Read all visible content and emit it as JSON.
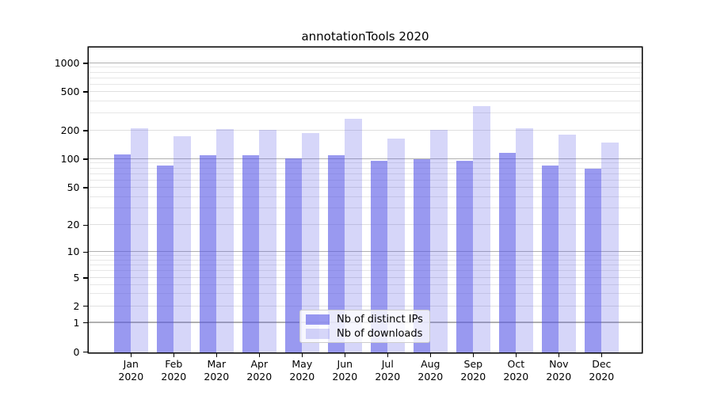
{
  "chart_data": {
    "type": "bar",
    "title": "annotationTools 2020",
    "categories": [
      "Jan",
      "Feb",
      "Mar",
      "Apr",
      "May",
      "Jun",
      "Jul",
      "Aug",
      "Sep",
      "Oct",
      "Nov",
      "Dec"
    ],
    "year_label": "2020",
    "series": [
      {
        "name": "Nb of distinct IPs",
        "color": "rgba(85,85,230,0.60)",
        "values": [
          113,
          85,
          111,
          110,
          101,
          111,
          97,
          100,
          97,
          117,
          85,
          80
        ]
      },
      {
        "name": "Nb of downloads",
        "color": "rgba(85,85,230,0.24)",
        "values": [
          210,
          174,
          206,
          202,
          188,
          265,
          165,
          202,
          355,
          211,
          182,
          150
        ]
      }
    ],
    "xlabel": "",
    "ylabel": "",
    "yscale": "symlog",
    "ylim": [
      0,
      1500
    ],
    "yticks": [
      0,
      1,
      2,
      5,
      10,
      20,
      50,
      100,
      200,
      500,
      1000
    ],
    "minor_yticks": [
      3,
      4,
      6,
      7,
      8,
      9,
      30,
      40,
      60,
      70,
      80,
      90,
      300,
      400,
      600,
      700,
      800,
      900
    ],
    "major_grid_values": [
      1,
      10,
      100,
      1000
    ],
    "grid": "horizontal",
    "legend_position": "lower center",
    "scale_anchors": [
      [
        0,
        0.0
      ],
      [
        1,
        0.0956
      ],
      [
        2,
        0.1501
      ],
      [
        5,
        0.2429
      ],
      [
        10,
        0.3278
      ],
      [
        20,
        0.4161
      ],
      [
        50,
        0.539
      ],
      [
        100,
        0.6325
      ],
      [
        200,
        0.726
      ],
      [
        500,
        0.8532
      ],
      [
        1000,
        0.9468
      ]
    ]
  }
}
